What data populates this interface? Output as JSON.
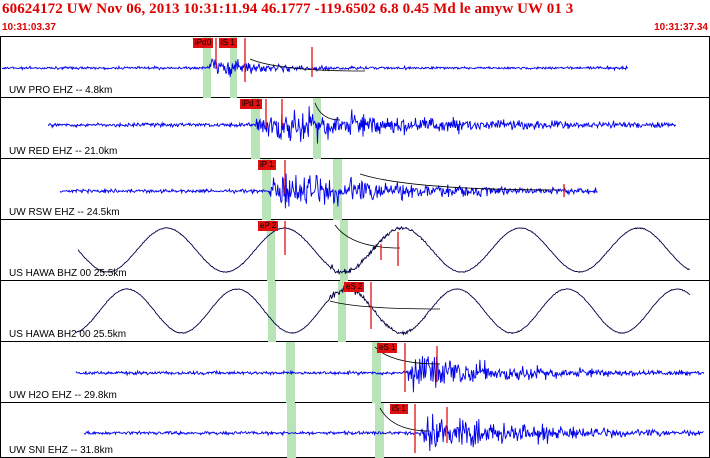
{
  "header": {
    "title": "60624172 UW Nov 06, 2013 10:31:11.94   46.1777 -119.6502  6.8 0.45 Md le amyw UW 01   3",
    "start_time": "10:31:03.37",
    "end_time": "10:31:37.34"
  },
  "colors": {
    "title": "#e00000",
    "seismogram_short_period": "#0000ee",
    "seismogram_broadband": "#000044",
    "pick_marker": "#e01010",
    "pick_window": "#b8e4b8",
    "coda_curve": "#000000"
  },
  "channels": [
    {
      "station": "UW PRO EHZ -- 4.8km",
      "picks": [
        "iPd0",
        "iS 1"
      ]
    },
    {
      "station": "UW RED EHZ -- 21.0km",
      "picks": [
        "iPd 1"
      ]
    },
    {
      "station": "UW RSW EHZ -- 24.5km",
      "picks": [
        "iP 1"
      ]
    },
    {
      "station": "US HAWA BHZ 00 25.5km",
      "picks": [
        "eP 2"
      ]
    },
    {
      "station": "US HAWA BH2 00 25.5km",
      "picks": [
        "eS 2"
      ]
    },
    {
      "station": "UW H2O EHZ -- 29.8km",
      "picks": [
        "eS 1"
      ]
    },
    {
      "station": "UW SNI EHZ -- 31.8km",
      "picks": [
        "iS 1"
      ]
    }
  ]
}
